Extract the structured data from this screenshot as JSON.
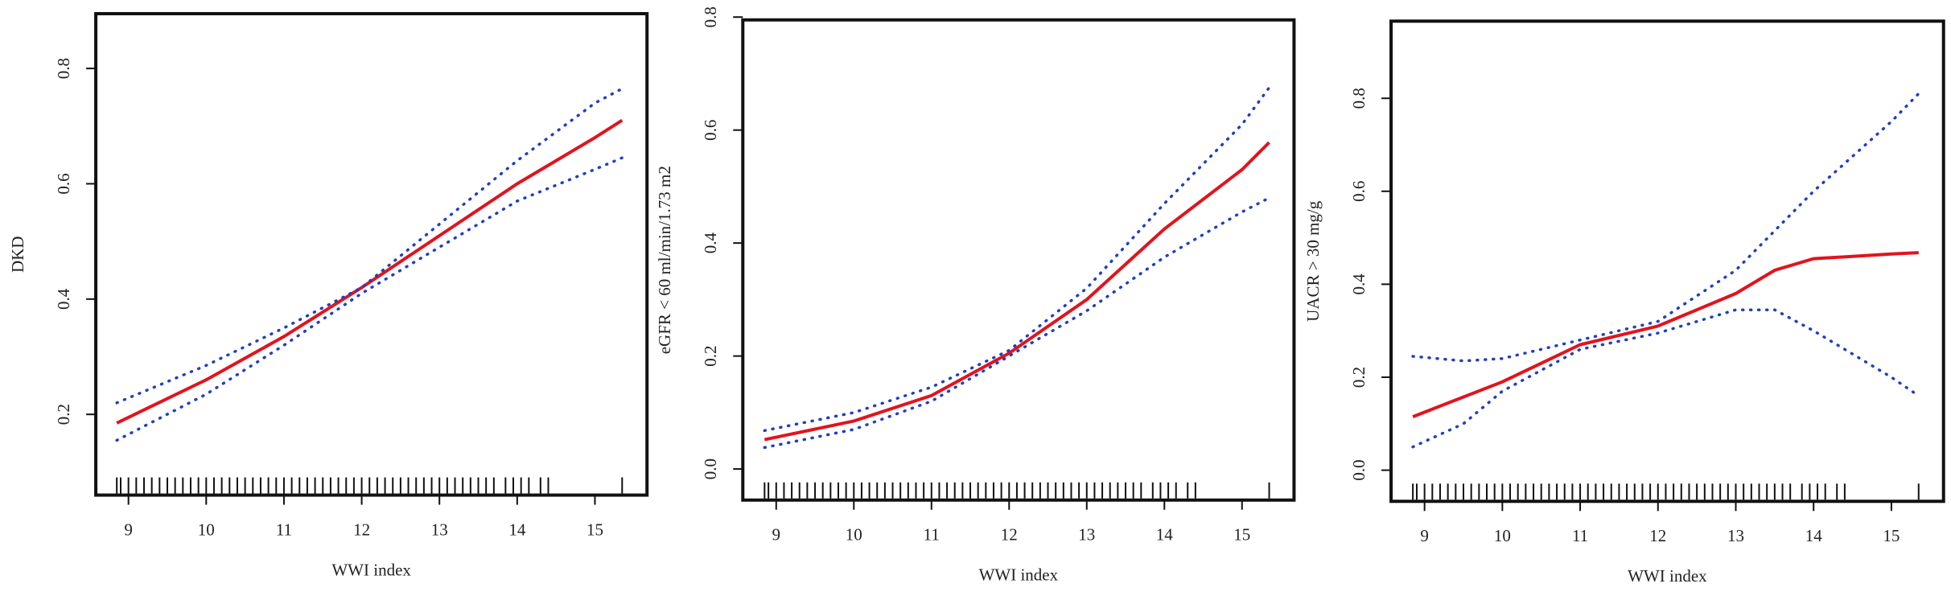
{
  "chart_data": [
    {
      "type": "line",
      "xlabel": "WWI index",
      "ylabel": "DKD",
      "xlim": [
        8.58,
        15.67
      ],
      "ylim": [
        0.06,
        0.895
      ],
      "xticks": [
        9,
        10,
        11,
        12,
        13,
        14,
        15
      ],
      "yticks": [
        0.2,
        0.4,
        0.6,
        0.8
      ],
      "series": [
        {
          "color": "#e0141e",
          "style": "solid",
          "x": [
            8.85,
            10,
            11,
            12,
            13,
            14,
            15,
            15.35
          ],
          "values": [
            0.185,
            0.26,
            0.335,
            0.42,
            0.51,
            0.6,
            0.68,
            0.71
          ]
        },
        {
          "color": "#1f3fbf",
          "style": "dotted",
          "x": [
            8.85,
            10,
            11,
            12,
            13,
            14,
            15,
            15.35
          ],
          "values": [
            0.22,
            0.285,
            0.35,
            0.42,
            0.53,
            0.64,
            0.74,
            0.765
          ]
        },
        {
          "color": "#1f3fbf",
          "style": "dotted",
          "x": [
            8.85,
            10,
            11,
            12,
            13,
            14,
            15,
            15.35
          ],
          "values": [
            0.155,
            0.235,
            0.32,
            0.41,
            0.49,
            0.57,
            0.625,
            0.645
          ]
        }
      ],
      "rug": [
        8.85,
        8.9,
        9.0,
        9.1,
        9.2,
        9.3,
        9.4,
        9.5,
        9.6,
        9.7,
        9.8,
        9.9,
        10.0,
        10.1,
        10.2,
        10.3,
        10.4,
        10.5,
        10.6,
        10.7,
        10.8,
        10.9,
        11.0,
        11.1,
        11.2,
        11.3,
        11.4,
        11.5,
        11.6,
        11.7,
        11.8,
        11.9,
        12.0,
        12.1,
        12.2,
        12.3,
        12.4,
        12.5,
        12.6,
        12.7,
        12.8,
        12.9,
        13.0,
        13.1,
        13.2,
        13.3,
        13.4,
        13.5,
        13.6,
        13.7,
        13.85,
        13.95,
        14.05,
        14.15,
        14.3,
        14.4,
        15.35
      ]
    },
    {
      "type": "line",
      "xlabel": "WWI index",
      "ylabel": "eGFR < 60 ml/min/1.73 m2",
      "xlim": [
        8.57,
        15.67
      ],
      "ylim": [
        -0.055,
        0.795
      ],
      "xticks": [
        9,
        10,
        11,
        12,
        13,
        14,
        15
      ],
      "yticks": [
        {
          "value": 0,
          "label": "0.0"
        },
        0.2,
        0.4,
        0.6,
        0.8
      ],
      "series": [
        {
          "color": "#e0141e",
          "style": "solid",
          "x": [
            8.85,
            10,
            11,
            12,
            13,
            14,
            15,
            15.35
          ],
          "values": [
            0.052,
            0.085,
            0.13,
            0.205,
            0.3,
            0.425,
            0.53,
            0.578
          ]
        },
        {
          "color": "#1f3fbf",
          "style": "dotted",
          "x": [
            8.85,
            10,
            11,
            12,
            13,
            14,
            15,
            15.35
          ],
          "values": [
            0.068,
            0.1,
            0.145,
            0.21,
            0.32,
            0.47,
            0.61,
            0.675
          ]
        },
        {
          "color": "#1f3fbf",
          "style": "dotted",
          "x": [
            8.85,
            10,
            11,
            12,
            13,
            14,
            15,
            15.35
          ],
          "values": [
            0.038,
            0.07,
            0.12,
            0.2,
            0.28,
            0.375,
            0.455,
            0.48
          ]
        }
      ],
      "rug": [
        8.85,
        8.9,
        9.0,
        9.1,
        9.2,
        9.3,
        9.4,
        9.5,
        9.6,
        9.7,
        9.8,
        9.9,
        10.0,
        10.1,
        10.2,
        10.3,
        10.4,
        10.5,
        10.6,
        10.7,
        10.8,
        10.9,
        11.0,
        11.1,
        11.2,
        11.3,
        11.4,
        11.5,
        11.6,
        11.7,
        11.8,
        11.9,
        12.0,
        12.1,
        12.2,
        12.3,
        12.4,
        12.5,
        12.6,
        12.7,
        12.8,
        12.9,
        13.0,
        13.1,
        13.2,
        13.3,
        13.4,
        13.5,
        13.6,
        13.7,
        13.85,
        13.95,
        14.05,
        14.15,
        14.3,
        14.4,
        15.35
      ]
    },
    {
      "type": "line",
      "xlabel": "WWI index",
      "ylabel": "UACR > 30 mg/g",
      "xlim": [
        8.57,
        15.67
      ],
      "ylim": [
        -0.067,
        0.966
      ],
      "xticks": [
        9,
        10,
        11,
        12,
        13,
        14,
        15
      ],
      "yticks": [
        {
          "value": 0,
          "label": "0.0"
        },
        0.2,
        0.4,
        0.6,
        0.8
      ],
      "series": [
        {
          "color": "#e0141e",
          "style": "solid",
          "x": [
            8.85,
            10,
            11,
            12,
            13,
            13.5,
            14,
            14.5,
            15,
            15.35
          ],
          "values": [
            0.115,
            0.19,
            0.27,
            0.31,
            0.38,
            0.43,
            0.455,
            0.46,
            0.465,
            0.468
          ]
        },
        {
          "color": "#1f3fbf",
          "style": "dotted",
          "x": [
            8.85,
            9.5,
            10,
            11,
            12,
            13,
            14,
            15,
            15.35
          ],
          "values": [
            0.245,
            0.235,
            0.24,
            0.28,
            0.32,
            0.43,
            0.6,
            0.75,
            0.81
          ]
        },
        {
          "color": "#1f3fbf",
          "style": "dotted",
          "x": [
            8.85,
            9.5,
            10,
            11,
            12,
            13,
            13.5,
            14,
            15,
            15.35
          ],
          "values": [
            0.05,
            0.1,
            0.17,
            0.26,
            0.295,
            0.345,
            0.345,
            0.3,
            0.2,
            0.16
          ]
        }
      ],
      "rug": [
        8.85,
        8.9,
        9.0,
        9.1,
        9.2,
        9.3,
        9.4,
        9.5,
        9.6,
        9.7,
        9.8,
        9.9,
        10.0,
        10.1,
        10.2,
        10.3,
        10.4,
        10.5,
        10.6,
        10.7,
        10.8,
        10.9,
        11.0,
        11.1,
        11.2,
        11.3,
        11.4,
        11.5,
        11.6,
        11.7,
        11.8,
        11.9,
        12.0,
        12.1,
        12.2,
        12.3,
        12.4,
        12.5,
        12.6,
        12.7,
        12.8,
        12.9,
        13.0,
        13.1,
        13.2,
        13.3,
        13.4,
        13.5,
        13.6,
        13.7,
        13.85,
        13.95,
        14.05,
        14.15,
        14.3,
        14.4,
        15.35
      ]
    }
  ]
}
